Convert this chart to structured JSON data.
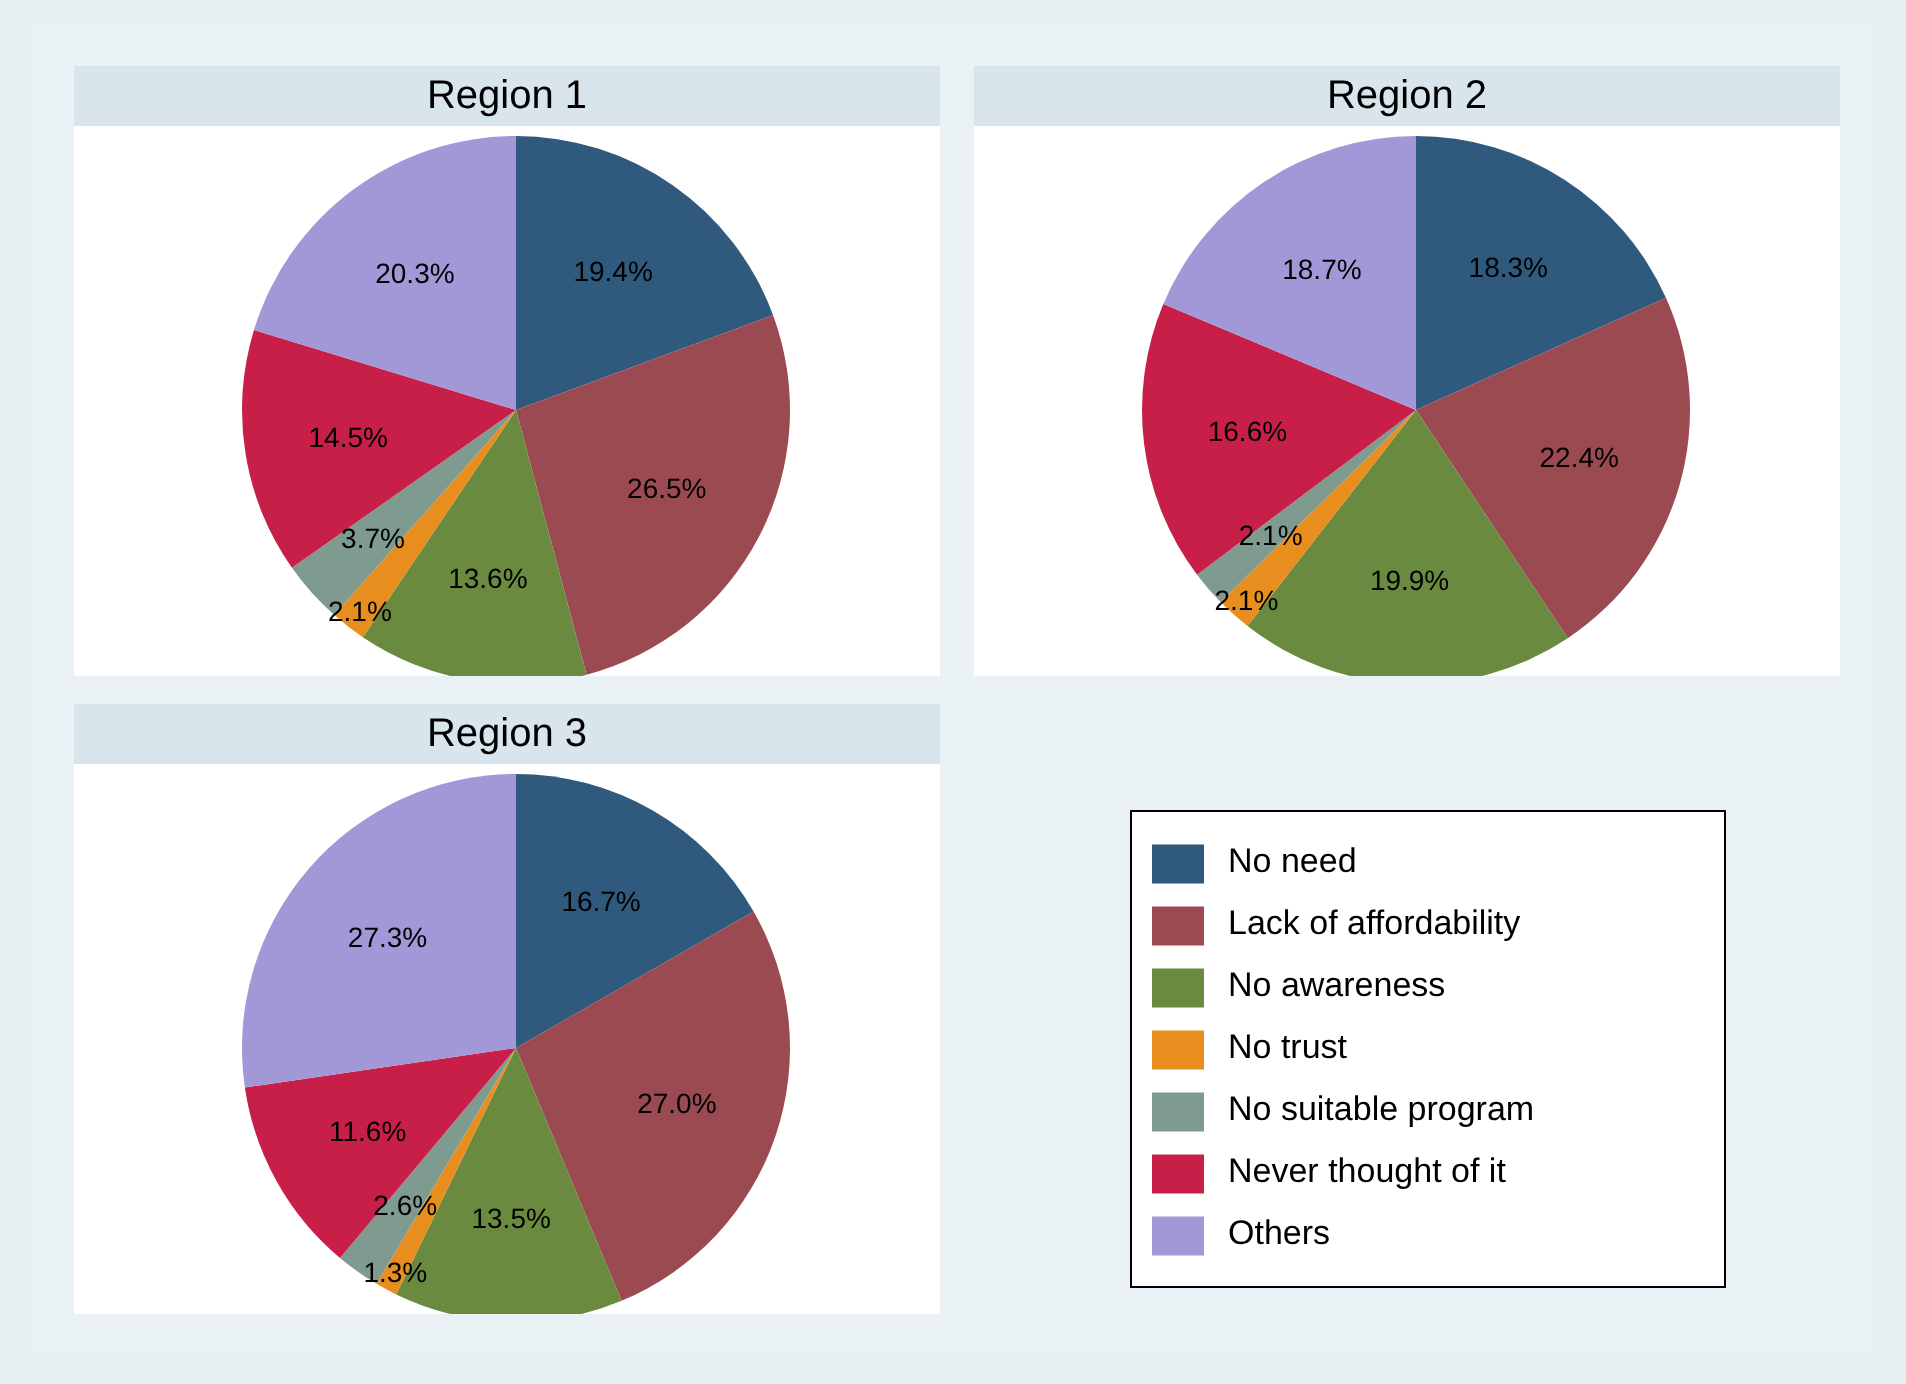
{
  "chart_data": [
    {
      "type": "pie",
      "title": "Region 1",
      "categories": [
        null,
        null,
        null,
        null,
        null,
        null,
        null
      ],
      "values": [
        19.4,
        26.5,
        13.6,
        2.1,
        3.7,
        14.5,
        20.3
      ],
      "value_labels": [
        "19.4%",
        "26.5%",
        "13.6%",
        "2.1%",
        "3.7%",
        "14.5%",
        "20.3%"
      ],
      "colors": [
        "#2f5a7e",
        "#9c4a51",
        "#6a8a3f",
        "#e88e1e",
        "#7f9b90",
        "#c81f48",
        "#a298d8"
      ],
      "legend": false
    },
    {
      "type": "pie",
      "title": "Region 2",
      "categories": [
        null,
        null,
        null,
        null,
        null,
        null,
        null
      ],
      "values": [
        18.3,
        22.4,
        19.9,
        2.1,
        2.1,
        16.6,
        18.7
      ],
      "value_labels": [
        "18.3%",
        "22.4%",
        "19.9%",
        "2.1%",
        "2.1%",
        "16.6%",
        "18.7%"
      ],
      "colors": [
        "#2f5a7e",
        "#9c4a51",
        "#6a8a3f",
        "#e88e1e",
        "#7f9b90",
        "#c81f48",
        "#a298d8"
      ],
      "legend": false
    },
    {
      "type": "pie",
      "title": "Region 3",
      "categories": [
        "No need",
        "Lack of affordability",
        "No awareness",
        "No trust",
        "No suitable program",
        "Never thought of it",
        "Others"
      ],
      "values": [
        16.7,
        27.0,
        13.5,
        1.3,
        2.6,
        11.6,
        27.3
      ],
      "value_labels": [
        "16.7%",
        "27.0%",
        "13.5%",
        "1.3%",
        "2.6%",
        "11.6%",
        "27.3%"
      ],
      "colors": [
        "#2f5a7e",
        "#9c4a51",
        "#6a8a3f",
        "#e88e1e",
        "#7f9b90",
        "#c81f48",
        "#a298d8"
      ],
      "legend": "right"
    }
  ]
}
